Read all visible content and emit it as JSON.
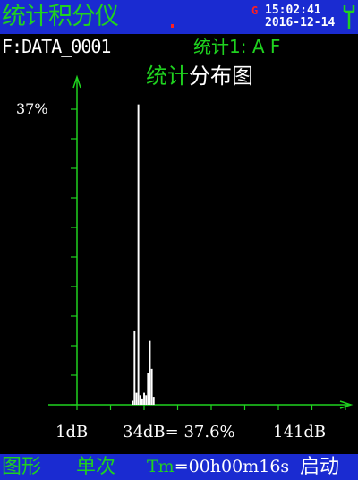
{
  "header": {
    "app_title": "统计积分仪",
    "g_indicator": "G",
    "time": "15:02:41",
    "date": "2016-12-14"
  },
  "info": {
    "file_name": "F:DATA_0001",
    "stat_label": "统计1: A F"
  },
  "chart_title": {
    "prefix": "统计",
    "suffix": "分布图"
  },
  "readout": {
    "xmin": "1dB",
    "cursor": "34dB= 37.6%",
    "xmax": "141dB"
  },
  "footer": {
    "mode": "图形",
    "single": "单次",
    "tm_label": "Tm",
    "tm_value": "=00h00m16s",
    "start": "启动"
  },
  "colors": {
    "bar_blue": "#1a2bd1",
    "green": "#1fd21f",
    "red": "#ff2020"
  },
  "chart_data": {
    "type": "bar",
    "title": "统计分布图",
    "xlabel": "",
    "ylabel": "",
    "xlim": [
      1,
      141
    ],
    "ylim": [
      0,
      37
    ],
    "ytick_labels": [
      "37%"
    ],
    "xtick_labels": [
      "1dB",
      "141dB"
    ],
    "grid": false,
    "x": [
      31,
      32,
      33,
      34,
      35,
      36,
      37,
      38,
      39,
      40,
      41,
      42
    ],
    "values": [
      0.5,
      9.2,
      1.5,
      37.6,
      1.2,
      0.8,
      1.5,
      1.2,
      4.0,
      8.0,
      4.5,
      1.0
    ]
  }
}
